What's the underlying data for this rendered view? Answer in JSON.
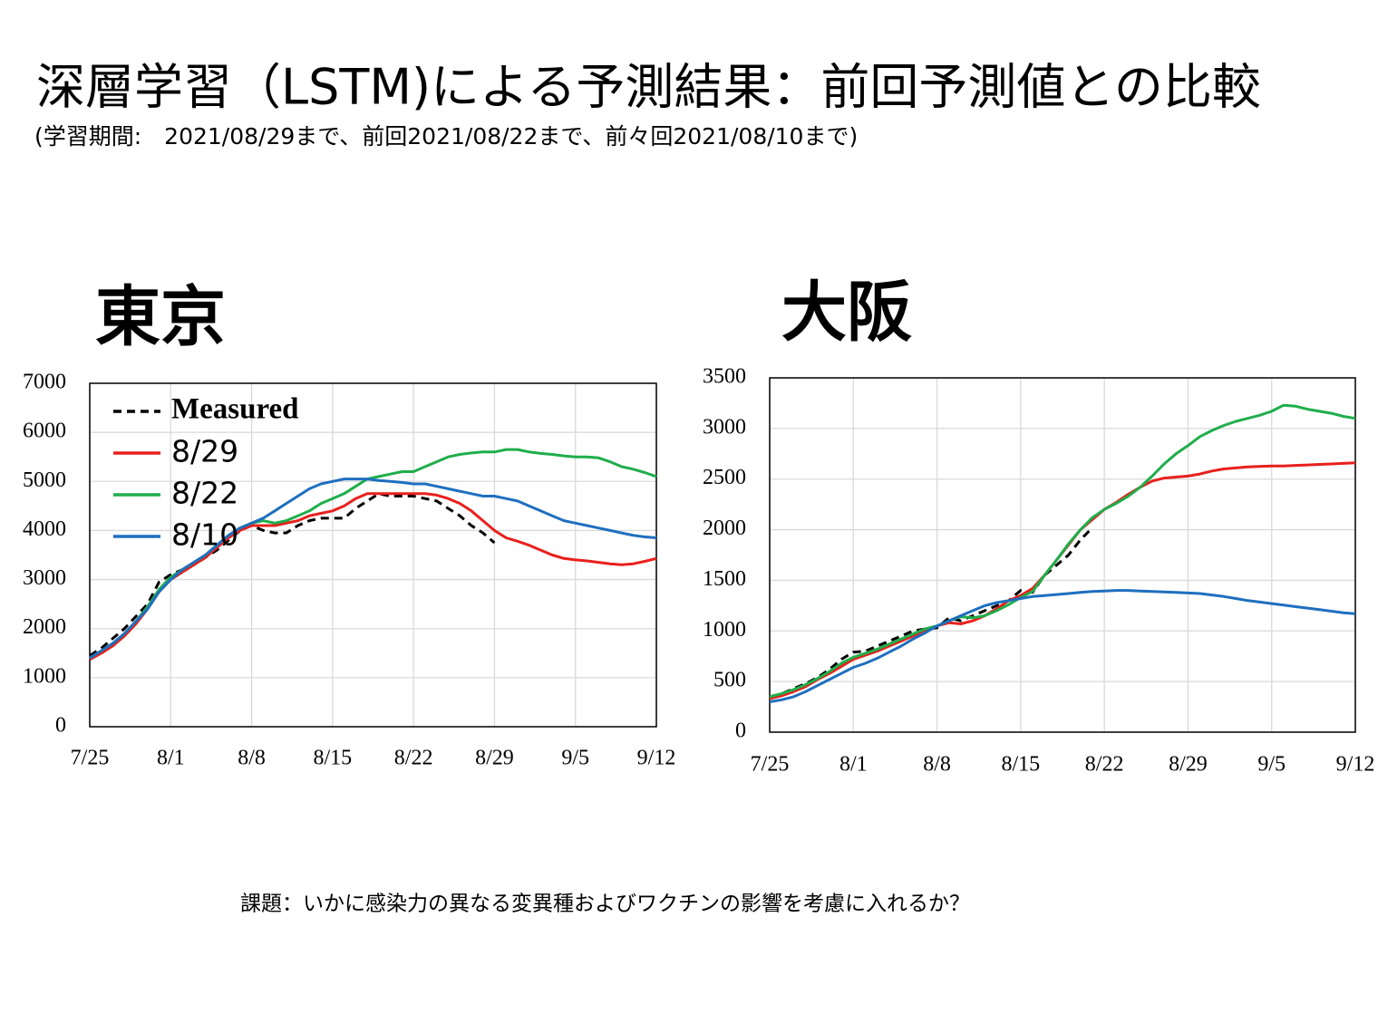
{
  "title": "深層学習（LSTM)による予測結果：前回予測値との比較",
  "subtitle": "(学習期間:　2021/08/29まで、前回2021/08/22まで、前々回2021/08/10まで)",
  "note": "課題：いかに感染力の異なる変異種およびワクチンの影響を考慮に入れるか？",
  "chart_data": [
    {
      "type": "line",
      "title": "東京",
      "categories": [
        "7/25",
        null,
        null,
        null,
        null,
        null,
        null,
        "8/1",
        null,
        null,
        null,
        null,
        null,
        null,
        "8/8",
        null,
        null,
        null,
        null,
        null,
        null,
        "8/15",
        null,
        null,
        null,
        null,
        null,
        null,
        "8/22",
        null,
        null,
        null,
        null,
        null,
        null,
        "8/29",
        null,
        null,
        null,
        null,
        null,
        null,
        "9/5",
        null,
        null,
        null,
        null,
        null,
        null,
        "9/12"
      ],
      "ylim": [
        0,
        7000
      ],
      "yticks": [
        0,
        1000,
        2000,
        3000,
        4000,
        5000,
        6000,
        7000
      ],
      "grid": true,
      "legend": "upper left",
      "series": [
        {
          "name": "Measured",
          "color": "#000000",
          "dash": true,
          "values": [
            1450,
            1600,
            1800,
            2000,
            2250,
            2500,
            2950,
            3100,
            3200,
            3300,
            3450,
            3600,
            3800,
            4000,
            4100,
            4000,
            3950,
            3950,
            4100,
            4200,
            4250,
            4250,
            4250,
            4450,
            4600,
            4750,
            4700,
            4700,
            4700,
            4650,
            4600,
            4450,
            4300,
            4100,
            3950,
            3750,
            null,
            null,
            null,
            null,
            null,
            null,
            null,
            null,
            null,
            null,
            null,
            null,
            null,
            null
          ]
        },
        {
          "name": "8/29",
          "color": "#e8201c",
          "values": [
            1370,
            1500,
            1650,
            1850,
            2100,
            2400,
            2750,
            3000,
            3150,
            3300,
            3450,
            3650,
            3850,
            4000,
            4100,
            4100,
            4100,
            4150,
            4200,
            4300,
            4350,
            4400,
            4500,
            4650,
            4750,
            4750,
            4750,
            4750,
            4750,
            4750,
            4720,
            4650,
            4550,
            4400,
            4200,
            4000,
            3850,
            3780,
            3700,
            3600,
            3500,
            3430,
            3400,
            3380,
            3350,
            3320,
            3300,
            3320,
            3370,
            3430
          ]
        },
        {
          "name": "8/22",
          "color": "#1fae4b",
          "values": [
            1400,
            1550,
            1700,
            1900,
            2150,
            2450,
            2800,
            3050,
            3200,
            3350,
            3500,
            3700,
            3900,
            4050,
            4150,
            4200,
            4150,
            4200,
            4300,
            4400,
            4550,
            4650,
            4750,
            4900,
            5050,
            5100,
            5150,
            5200,
            5200,
            5300,
            5400,
            5500,
            5550,
            5580,
            5600,
            5600,
            5650,
            5650,
            5600,
            5570,
            5550,
            5520,
            5500,
            5500,
            5480,
            5400,
            5300,
            5250,
            5180,
            5100
          ]
        },
        {
          "name": "8/10",
          "color": "#1e6fbf",
          "values": [
            1400,
            1550,
            1700,
            1900,
            2150,
            2400,
            2750,
            3000,
            3200,
            3350,
            3500,
            3700,
            3900,
            4050,
            4150,
            4250,
            4400,
            4550,
            4700,
            4850,
            4950,
            5000,
            5050,
            5050,
            5050,
            5020,
            5000,
            4980,
            4950,
            4950,
            4900,
            4850,
            4800,
            4750,
            4700,
            4700,
            4650,
            4600,
            4500,
            4400,
            4300,
            4200,
            4150,
            4100,
            4050,
            4000,
            3950,
            3900,
            3870,
            3850
          ]
        }
      ]
    },
    {
      "type": "line",
      "title": "大阪",
      "categories": [
        "7/25",
        null,
        null,
        null,
        null,
        null,
        null,
        "8/1",
        null,
        null,
        null,
        null,
        null,
        null,
        "8/8",
        null,
        null,
        null,
        null,
        null,
        null,
        "8/15",
        null,
        null,
        null,
        null,
        null,
        null,
        "8/22",
        null,
        null,
        null,
        null,
        null,
        null,
        "8/29",
        null,
        null,
        null,
        null,
        null,
        null,
        "9/5",
        null,
        null,
        null,
        null,
        null,
        null,
        "9/12"
      ],
      "ylim": [
        0,
        3500
      ],
      "yticks": [
        0,
        500,
        1000,
        1500,
        2000,
        2500,
        3000,
        3500
      ],
      "grid": true,
      "series": [
        {
          "color": "#000000",
          "dash": true,
          "values": [
            350,
            380,
            430,
            480,
            540,
            620,
            720,
            790,
            800,
            850,
            900,
            950,
            1000,
            1020,
            1030,
            1130,
            1100,
            1150,
            1200,
            1250,
            1300,
            1400,
            1380,
            1550,
            1650,
            1750,
            1900,
            2020,
            null,
            null,
            null,
            null,
            null,
            null,
            null,
            null,
            null,
            null,
            null,
            null,
            null,
            null,
            null,
            null,
            null,
            null,
            null,
            null,
            null,
            null
          ]
        },
        {
          "color": "#e8201c",
          "values": [
            330,
            360,
            400,
            450,
            520,
            580,
            650,
            720,
            760,
            800,
            850,
            900,
            950,
            1000,
            1050,
            1080,
            1070,
            1100,
            1150,
            1220,
            1300,
            1350,
            1420,
            1550,
            1700,
            1850,
            2000,
            2100,
            2200,
            2270,
            2350,
            2420,
            2480,
            2510,
            2520,
            2530,
            2550,
            2580,
            2600,
            2610,
            2620,
            2625,
            2630,
            2630,
            2635,
            2640,
            2645,
            2650,
            2655,
            2660
          ]
        },
        {
          "color": "#1fae4b",
          "values": [
            350,
            380,
            420,
            470,
            530,
            600,
            680,
            740,
            780,
            820,
            870,
            920,
            970,
            1020,
            1050,
            1100,
            1140,
            1130,
            1150,
            1200,
            1260,
            1330,
            1390,
            1550,
            1700,
            1860,
            2000,
            2120,
            2200,
            2260,
            2330,
            2420,
            2530,
            2650,
            2750,
            2830,
            2920,
            2980,
            3030,
            3070,
            3100,
            3130,
            3170,
            3230,
            3220,
            3190,
            3170,
            3150,
            3120,
            3100
          ]
        },
        {
          "color": "#1e6fbf",
          "values": [
            300,
            320,
            350,
            400,
            460,
            520,
            580,
            640,
            680,
            730,
            790,
            850,
            920,
            980,
            1050,
            1100,
            1150,
            1200,
            1250,
            1280,
            1300,
            1320,
            1340,
            1350,
            1360,
            1370,
            1380,
            1390,
            1395,
            1400,
            1400,
            1395,
            1390,
            1385,
            1380,
            1375,
            1370,
            1355,
            1340,
            1320,
            1300,
            1285,
            1270,
            1255,
            1240,
            1225,
            1210,
            1195,
            1180,
            1170
          ]
        }
      ]
    }
  ]
}
